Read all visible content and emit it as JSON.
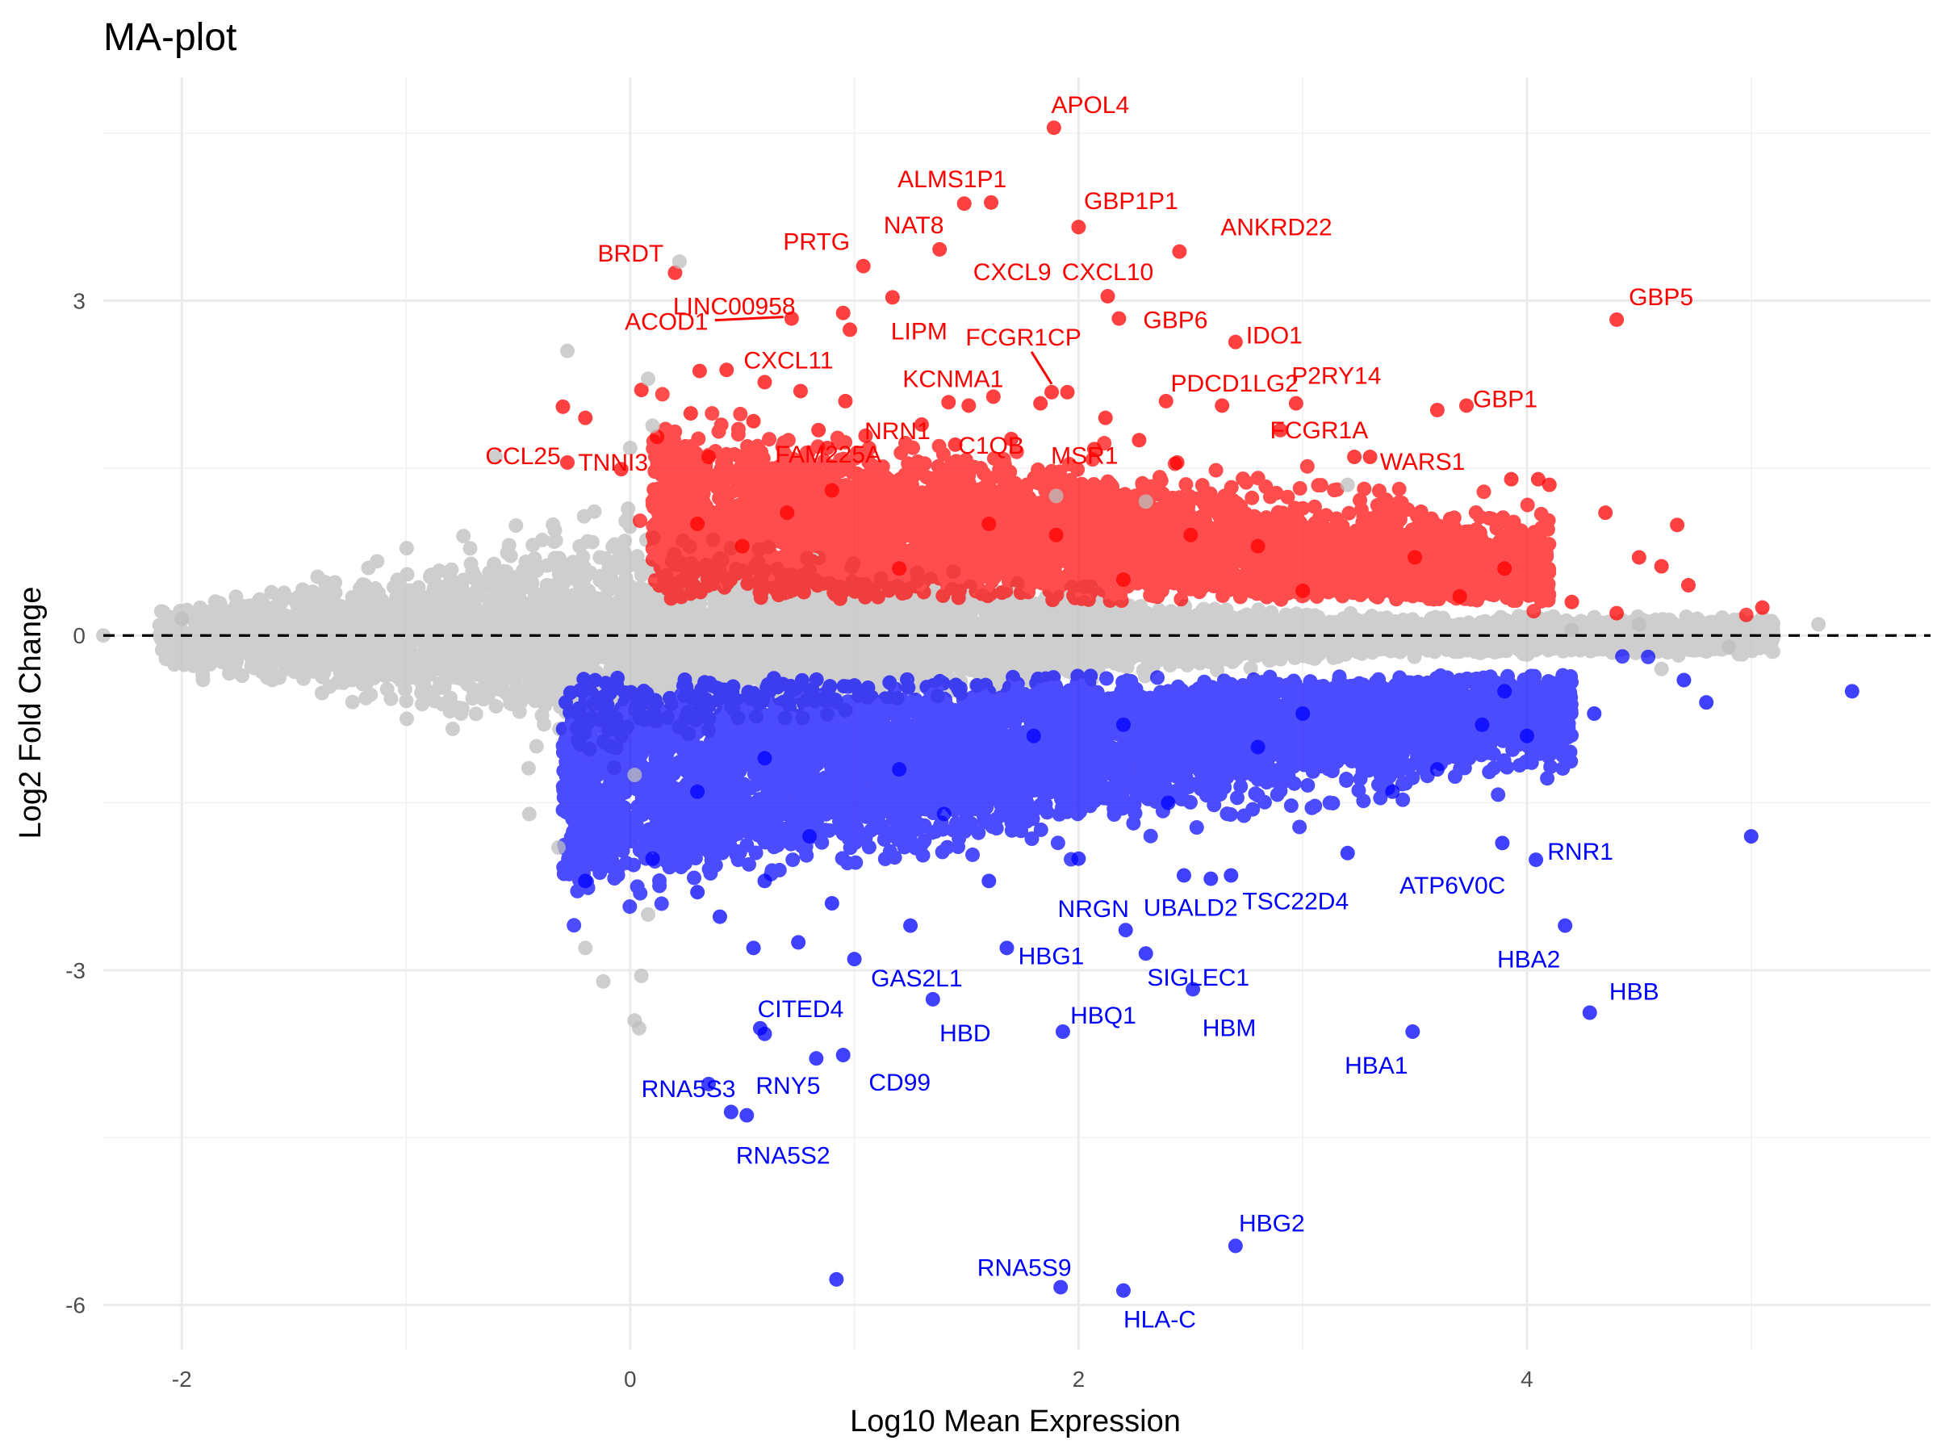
{
  "chart_data": {
    "type": "scatter",
    "title": "MA-plot",
    "xlabel": "Log10 Mean Expression",
    "ylabel": "Log2 Fold Change",
    "xlim": [
      -2.35,
      5.8
    ],
    "ylim": [
      -6.4,
      5.0
    ],
    "x_ticks": [
      -2,
      0,
      2,
      4
    ],
    "y_ticks": [
      3,
      0,
      -3,
      -6
    ],
    "x_tick_labels": [
      "-2",
      "0",
      "2",
      "4"
    ],
    "y_tick_labels": [
      "3",
      "0",
      "-3",
      "-6"
    ],
    "reference_line": {
      "y": 0,
      "style": "dashed"
    },
    "grid": true,
    "colors": {
      "up": "#ff0000",
      "down": "#0000ff",
      "ns": "#bebebe",
      "ref": "#000000"
    },
    "series": [
      {
        "category": "up",
        "points": [
          [
            1.89,
            4.55
          ],
          [
            1.49,
            3.87
          ],
          [
            1.61,
            3.88
          ],
          [
            2.0,
            3.66
          ],
          [
            1.38,
            3.46
          ],
          [
            2.45,
            3.44
          ],
          [
            0.2,
            3.25
          ],
          [
            1.04,
            3.31
          ],
          [
            0.72,
            2.84
          ],
          [
            0.95,
            2.89
          ],
          [
            0.98,
            2.74
          ],
          [
            1.17,
            3.03
          ],
          [
            2.13,
            3.04
          ],
          [
            2.18,
            2.84
          ],
          [
            2.7,
            2.63
          ],
          [
            4.4,
            2.83
          ],
          [
            1.88,
            2.18
          ],
          [
            1.95,
            2.18
          ],
          [
            1.62,
            2.14
          ],
          [
            1.51,
            2.06
          ],
          [
            1.42,
            2.09
          ],
          [
            1.83,
            2.08
          ],
          [
            2.12,
            1.95
          ],
          [
            2.39,
            2.1
          ],
          [
            2.64,
            2.06
          ],
          [
            2.97,
            2.08
          ],
          [
            3.6,
            2.02
          ],
          [
            3.73,
            2.06
          ],
          [
            0.31,
            2.37
          ],
          [
            0.43,
            2.38
          ],
          [
            0.6,
            2.27
          ],
          [
            0.76,
            2.19
          ],
          [
            0.96,
            2.1
          ],
          [
            -0.3,
            2.05
          ],
          [
            -0.2,
            1.95
          ],
          [
            0.05,
            2.2
          ],
          [
            0.12,
            1.78
          ],
          [
            0.27,
            1.99
          ],
          [
            0.55,
            1.92
          ],
          [
            0.84,
            1.84
          ],
          [
            1.05,
            1.79
          ],
          [
            1.3,
            1.89
          ],
          [
            1.7,
            1.76
          ],
          [
            2.07,
            1.67
          ],
          [
            2.9,
            1.84
          ],
          [
            3.23,
            1.6
          ],
          [
            3.3,
            1.6
          ],
          [
            -0.28,
            1.55
          ],
          [
            -0.04,
            1.49
          ],
          [
            0.35,
            1.6
          ],
          [
            0.88,
            1.68
          ],
          [
            1.45,
            1.71
          ],
          [
            2.27,
            1.75
          ],
          [
            2.44,
            1.55
          ],
          [
            3.93,
            1.4
          ],
          [
            4.05,
            1.4
          ],
          [
            4.1,
            1.35
          ],
          [
            4.35,
            1.1
          ],
          [
            4.67,
            0.99
          ],
          [
            4.5,
            0.7
          ],
          [
            4.6,
            0.62
          ],
          [
            4.72,
            0.45
          ],
          [
            5.05,
            0.25
          ],
          [
            3.9,
            0.6
          ],
          [
            3.5,
            0.7
          ],
          [
            2.5,
            0.9
          ],
          [
            1.6,
            1.0
          ],
          [
            0.9,
            1.3
          ],
          [
            0.3,
            1.0
          ],
          [
            0.5,
            0.8
          ],
          [
            1.2,
            0.6
          ],
          [
            2.2,
            0.5
          ],
          [
            3.0,
            0.4
          ],
          [
            3.7,
            0.35
          ],
          [
            4.2,
            0.3
          ],
          [
            4.4,
            0.2
          ],
          [
            0.7,
            1.1
          ],
          [
            1.9,
            0.9
          ],
          [
            2.8,
            0.8
          ]
        ]
      },
      {
        "category": "down",
        "points": [
          [
            2.7,
            -5.47
          ],
          [
            1.92,
            -5.84
          ],
          [
            2.2,
            -5.87
          ],
          [
            0.92,
            -5.77
          ],
          [
            0.45,
            -4.27
          ],
          [
            0.52,
            -4.3
          ],
          [
            0.35,
            -4.02
          ],
          [
            0.83,
            -3.79
          ],
          [
            0.95,
            -3.76
          ],
          [
            0.58,
            -3.52
          ],
          [
            0.6,
            -3.57
          ],
          [
            1.35,
            -3.26
          ],
          [
            1.93,
            -3.55
          ],
          [
            2.51,
            -3.17
          ],
          [
            3.49,
            -3.55
          ],
          [
            4.28,
            -3.38
          ],
          [
            4.17,
            -2.6
          ],
          [
            4.04,
            -2.01
          ],
          [
            3.89,
            -1.86
          ],
          [
            5.0,
            -1.8
          ],
          [
            5.45,
            -0.5
          ],
          [
            1.68,
            -2.8
          ],
          [
            2.21,
            -2.64
          ],
          [
            2.3,
            -2.85
          ],
          [
            2.47,
            -2.15
          ],
          [
            2.68,
            -2.15
          ],
          [
            2.59,
            -2.18
          ],
          [
            3.2,
            -1.95
          ],
          [
            0.4,
            -2.52
          ],
          [
            0.55,
            -2.8
          ],
          [
            0.75,
            -2.75
          ],
          [
            1.0,
            -2.9
          ],
          [
            1.25,
            -2.6
          ],
          [
            0.3,
            -2.3
          ],
          [
            0.6,
            -2.2
          ],
          [
            0.9,
            -2.4
          ],
          [
            1.6,
            -2.2
          ],
          [
            2.0,
            -2.0
          ],
          [
            -0.2,
            -2.2
          ],
          [
            0.1,
            -2.0
          ],
          [
            0.8,
            -1.8
          ],
          [
            1.4,
            -1.6
          ],
          [
            2.4,
            -1.5
          ],
          [
            3.4,
            -1.4
          ],
          [
            3.6,
            -1.2
          ],
          [
            4.0,
            -0.9
          ],
          [
            4.3,
            -0.7
          ],
          [
            4.7,
            -0.4
          ],
          [
            4.8,
            -0.6
          ],
          [
            0.3,
            -1.4
          ],
          [
            1.2,
            -1.2
          ],
          [
            2.8,
            -1.0
          ],
          [
            3.8,
            -0.8
          ],
          [
            0.6,
            -1.1
          ],
          [
            1.8,
            -0.9
          ],
          [
            2.2,
            -0.8
          ],
          [
            3.0,
            -0.7
          ],
          [
            3.9,
            -0.5
          ]
        ]
      },
      {
        "category": "ns",
        "points": [
          [
            0.22,
            3.35
          ],
          [
            0.08,
            2.3
          ],
          [
            -0.28,
            2.55
          ],
          [
            0.1,
            1.88
          ],
          [
            0.0,
            1.68
          ],
          [
            -0.6,
            1.6
          ],
          [
            0.02,
            -1.25
          ],
          [
            0.08,
            -2.5
          ],
          [
            0.05,
            -3.05
          ],
          [
            0.02,
            -3.45
          ],
          [
            0.04,
            -3.52
          ],
          [
            -0.12,
            -3.1
          ],
          [
            -0.2,
            -2.8
          ],
          [
            -0.32,
            -1.9
          ],
          [
            -0.45,
            -1.6
          ],
          [
            -2.0,
            0.15
          ],
          [
            -2.35,
            0.0
          ],
          [
            4.2,
            0.05
          ],
          [
            4.5,
            0.1
          ],
          [
            5.3,
            0.1
          ],
          [
            4.6,
            -0.3
          ],
          [
            4.9,
            -0.1
          ],
          [
            3.2,
            1.35
          ],
          [
            2.3,
            1.2
          ],
          [
            1.9,
            1.25
          ]
        ]
      }
    ],
    "labels": [
      {
        "text": "APOL4",
        "x": 1.89,
        "y": 4.55,
        "group": "up"
      },
      {
        "text": "ALMS1P1",
        "x": 1.49,
        "y": 3.87,
        "group": "up"
      },
      {
        "text": "GBP1P1",
        "x": 2.0,
        "y": 3.66,
        "group": "up"
      },
      {
        "text": "NAT8",
        "x": 1.38,
        "y": 3.46,
        "group": "up"
      },
      {
        "text": "ANKRD22",
        "x": 2.45,
        "y": 3.44,
        "group": "up"
      },
      {
        "text": "PRTG",
        "x": 1.04,
        "y": 3.31,
        "group": "up"
      },
      {
        "text": "BRDT",
        "x": 0.2,
        "y": 3.25,
        "group": "up"
      },
      {
        "text": "LINC00958",
        "x": 0.95,
        "y": 2.89,
        "group": "up"
      },
      {
        "text": "CXCL9",
        "x": 1.38,
        "y": 3.46,
        "group": "up"
      },
      {
        "text": "CXCL10",
        "x": 2.13,
        "y": 3.04,
        "group": "up"
      },
      {
        "text": "GBP5",
        "x": 4.4,
        "y": 2.83,
        "group": "up"
      },
      {
        "text": "ACOD1",
        "x": 0.72,
        "y": 2.84,
        "group": "up"
      },
      {
        "text": "LIPM",
        "x": 1.17,
        "y": 3.03,
        "group": "up"
      },
      {
        "text": "FCGR1CP",
        "x": 1.88,
        "y": 2.18,
        "group": "up"
      },
      {
        "text": "GBP6",
        "x": 2.18,
        "y": 2.84,
        "group": "up"
      },
      {
        "text": "IDO1",
        "x": 2.7,
        "y": 2.63,
        "group": "up"
      },
      {
        "text": "CXCL11",
        "x": 0.76,
        "y": 2.19,
        "group": "up"
      },
      {
        "text": "KCNMA1",
        "x": 1.62,
        "y": 2.14,
        "group": "up"
      },
      {
        "text": "PDCD1LG2",
        "x": 2.39,
        "y": 2.1,
        "group": "up"
      },
      {
        "text": "P2RY14",
        "x": 2.97,
        "y": 2.08,
        "group": "up"
      },
      {
        "text": "GBP1",
        "x": 3.73,
        "y": 2.06,
        "group": "up"
      },
      {
        "text": "FAM225A",
        "x": 0.84,
        "y": 1.84,
        "group": "up"
      },
      {
        "text": "CCL25",
        "x": -0.28,
        "y": 1.55,
        "group": "up"
      },
      {
        "text": "TNNI3",
        "x": -0.04,
        "y": 1.49,
        "group": "up"
      },
      {
        "text": "NRN1",
        "x": 1.3,
        "y": 1.89,
        "group": "up"
      },
      {
        "text": "C1QB",
        "x": 1.7,
        "y": 1.76,
        "group": "up"
      },
      {
        "text": "MSR1",
        "x": 2.07,
        "y": 1.67,
        "group": "up"
      },
      {
        "text": "FCGR1A",
        "x": 2.9,
        "y": 1.84,
        "group": "up"
      },
      {
        "text": "WARS1",
        "x": 3.3,
        "y": 1.6,
        "group": "up"
      },
      {
        "text": "UBALD2",
        "x": 2.59,
        "y": -2.18,
        "group": "down"
      },
      {
        "text": "RNR1",
        "x": 4.04,
        "y": -2.01,
        "group": "down"
      },
      {
        "text": "ATP6V0C",
        "x": 3.2,
        "y": -1.95,
        "group": "down"
      },
      {
        "text": "NRGN",
        "x": 2.21,
        "y": -2.64,
        "group": "down"
      },
      {
        "text": "TSC22D4",
        "x": 2.68,
        "y": -2.15,
        "group": "down"
      },
      {
        "text": "HBG1",
        "x": 1.68,
        "y": -2.8,
        "group": "down"
      },
      {
        "text": "HBA2",
        "x": 4.17,
        "y": -2.6,
        "group": "down"
      },
      {
        "text": "SIGLEC1",
        "x": 2.3,
        "y": -2.85,
        "group": "down"
      },
      {
        "text": "GAS2L1",
        "x": 1.35,
        "y": -3.26,
        "group": "down"
      },
      {
        "text": "HBB",
        "x": 4.28,
        "y": -3.38,
        "group": "down"
      },
      {
        "text": "CITED4",
        "x": 0.58,
        "y": -3.52,
        "group": "down"
      },
      {
        "text": "HBQ1",
        "x": 1.93,
        "y": -3.55,
        "group": "down"
      },
      {
        "text": "HBM",
        "x": 2.51,
        "y": -3.17,
        "group": "down"
      },
      {
        "text": "HBD",
        "x": 1.35,
        "y": -3.26,
        "group": "down"
      },
      {
        "text": "HBA1",
        "x": 3.49,
        "y": -3.55,
        "group": "down"
      },
      {
        "text": "CD99",
        "x": 0.95,
        "y": -3.76,
        "group": "down"
      },
      {
        "text": "RNA5S3",
        "x": 0.35,
        "y": -4.02,
        "group": "down"
      },
      {
        "text": "RNY5",
        "x": 0.83,
        "y": -3.79,
        "group": "down"
      },
      {
        "text": "RNA5S2",
        "x": 0.52,
        "y": -4.3,
        "group": "down"
      },
      {
        "text": "HBG2",
        "x": 2.7,
        "y": -5.47,
        "group": "down"
      },
      {
        "text": "RNA5S9",
        "x": 1.92,
        "y": -5.84,
        "group": "down"
      },
      {
        "text": "HLA-C",
        "x": 2.2,
        "y": -5.87,
        "group": "down"
      }
    ]
  }
}
